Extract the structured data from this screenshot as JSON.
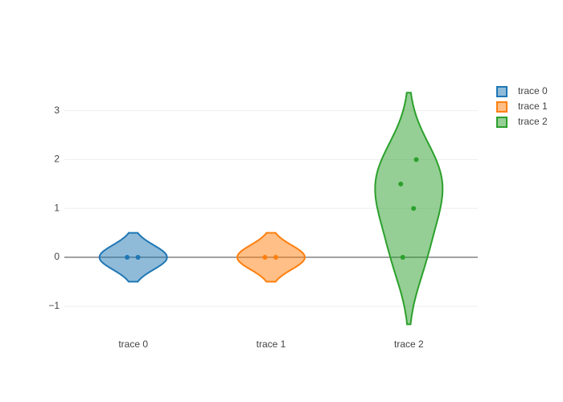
{
  "chart_data": {
    "type": "violin",
    "categories": [
      "trace 0",
      "trace 1",
      "trace 2"
    ],
    "series": [
      {
        "name": "trace 0",
        "color": "#1f77b4",
        "values": [
          0,
          0
        ]
      },
      {
        "name": "trace 1",
        "color": "#ff7f0e",
        "values": [
          0,
          0
        ]
      },
      {
        "name": "trace 2",
        "color": "#2ca02c",
        "values": [
          0,
          1,
          2,
          1.5
        ]
      }
    ],
    "ylim": [
      -1.48,
      3.62
    ],
    "yticks": [
      {
        "value": -1,
        "label": "−1"
      },
      0,
      1,
      2,
      3
    ],
    "grid": true,
    "legend": "right"
  }
}
